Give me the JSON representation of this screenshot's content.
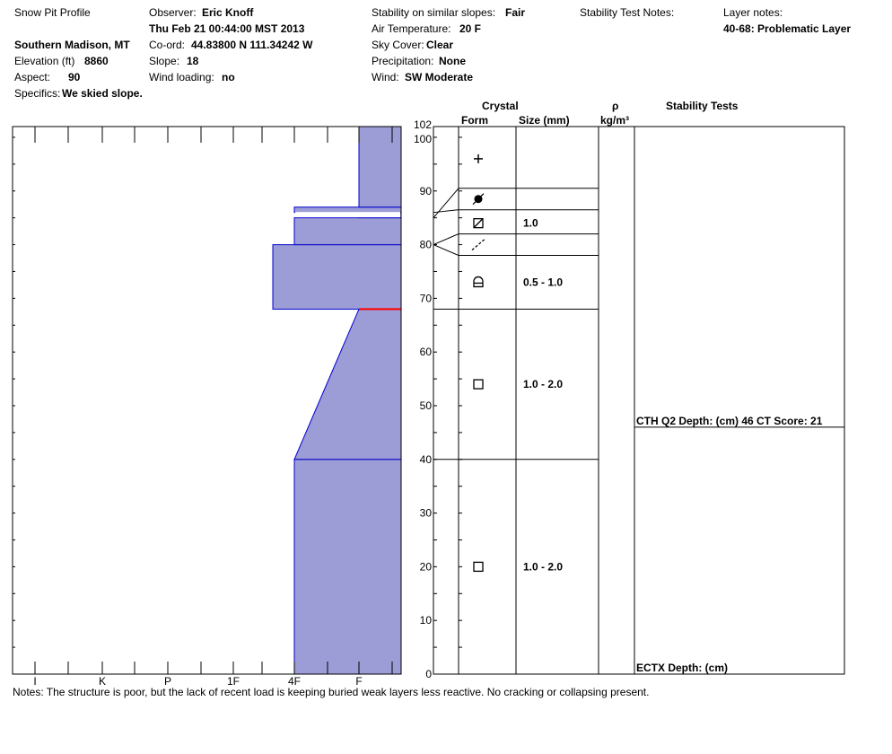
{
  "header": {
    "title": "Snow Pit Profile",
    "location": "Southern Madison, MT",
    "elevation_label": "Elevation (ft)",
    "elevation_value": "8860",
    "aspect_label": "Aspect:",
    "aspect_value": "90",
    "specifics_label": "Specifics:",
    "specifics_value": "We skied slope.",
    "observer_label": "Observer:",
    "observer_value": "Eric Knoff",
    "datetime": "Thu Feb 21 00:44:00 MST 2013",
    "coord_label": "Co-ord:",
    "coord_value": "44.83800 N 111.34242 W",
    "slope_label": "Slope:",
    "slope_value": "18",
    "wind_loading_label": "Wind loading:",
    "wind_loading_value": "no",
    "stability_label": "Stability on similar slopes:",
    "stability_value": "Fair",
    "air_temp_label": "Air Temperature:",
    "air_temp_value": "20 F",
    "sky_label": "Sky Cover:",
    "sky_value": "Clear",
    "precip_label": "Precipitation:",
    "precip_value": "None",
    "wind_label": "Wind:",
    "wind_value": "SW Moderate",
    "stability_notes_label": "Stability Test Notes:",
    "layer_notes_label": "Layer notes:",
    "layer_notes_value": "40-68: Problematic Layer"
  },
  "columns": {
    "crystal": "Crystal",
    "form": "Form",
    "size": "Size (mm)",
    "rho": "ρ",
    "density_unit": "kg/m³",
    "stability_tests": "Stability Tests"
  },
  "notes": "Notes:  The structure is poor, but the lack of recent load is keeping buried weak layers less reactive.  No cracking or collapsing present.",
  "colors": {
    "hardness_fill": "#9c9cd6",
    "layer_edge": "#0000cc",
    "problem_edge": "#ff0000"
  },
  "chart_data": {
    "type": "area",
    "title": "",
    "xlabel": "",
    "ylabel": "",
    "hardness_scale": [
      "I",
      "K",
      "P",
      "1F",
      "4F",
      "F"
    ],
    "ylim": [
      0,
      102
    ],
    "y_ticks": [
      0,
      10,
      20,
      30,
      40,
      50,
      60,
      70,
      80,
      90,
      100,
      102
    ],
    "hardness_layers": [
      {
        "bottom": 0,
        "top": 40,
        "hardness_bottom": "4F",
        "hardness_top": "4F"
      },
      {
        "bottom": 40,
        "top": 68,
        "hardness_bottom": "4F",
        "hardness_top": "F"
      },
      {
        "bottom": 68,
        "top": 80,
        "hardness_bottom": "1F+",
        "hardness_top": "1F+"
      },
      {
        "bottom": 80,
        "top": 85,
        "hardness_bottom": "4F",
        "hardness_top": "4F"
      },
      {
        "bottom": 85,
        "top": 86,
        "hardness_bottom": "F",
        "hardness_top": "F"
      },
      {
        "bottom": 86,
        "top": 87,
        "hardness_bottom": "4F-",
        "hardness_top": "4F-"
      },
      {
        "bottom": 87,
        "top": 102,
        "hardness_bottom": "F",
        "hardness_top": "F"
      }
    ],
    "problematic_boundary": 68,
    "crystal_layers": [
      {
        "top": 102,
        "bottom": 90.5,
        "form": "new-snow",
        "size": ""
      },
      {
        "top": 90.5,
        "bottom": 86.5,
        "form": "melt-freeze",
        "size": ""
      },
      {
        "top": 86.5,
        "bottom": 82,
        "form": "faceted-rounded",
        "size": "1.0"
      },
      {
        "top": 82,
        "bottom": 78,
        "form": "decomposing",
        "size": ""
      },
      {
        "top": 78,
        "bottom": 68,
        "form": "depth-hoar",
        "size": "0.5 - 1.0"
      },
      {
        "top": 68,
        "bottom": 40,
        "form": "faceted",
        "size": "1.0 - 2.0"
      },
      {
        "top": 40,
        "bottom": 0,
        "form": "faceted",
        "size": "1.0 - 2.0"
      }
    ],
    "stability_tests": [
      {
        "depth": 46,
        "label": "CTH Q2 Depth: (cm) 46 CT Score: 21"
      },
      {
        "depth": 0,
        "label": "ECTX   Depth: (cm)"
      }
    ]
  }
}
